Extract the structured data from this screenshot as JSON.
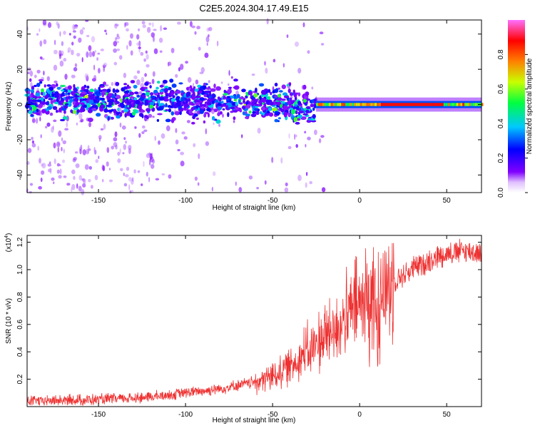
{
  "title": "C2E5.2024.304.17.49.E15",
  "chart_data": [
    {
      "type": "heatmap",
      "xlabel": "Height of straight line (km)",
      "ylabel": "Frequency (Hz)",
      "xlim": [
        -191,
        70
      ],
      "ylim": [
        -50,
        48
      ],
      "xticks": [
        -150,
        -100,
        -50,
        0,
        50
      ],
      "yticks": [
        -40,
        -20,
        0,
        20,
        40
      ],
      "colorbar": {
        "label": "Normalized spectral amplitude",
        "range": [
          0,
          1
        ],
        "ticks": [
          0.0,
          0.2,
          0.4,
          0.6,
          0.8
        ],
        "tick_labels": [
          "0.0",
          "0.2",
          "0.4",
          "0.6",
          "0.8"
        ],
        "colors": [
          "#ffffff",
          "#8000ff",
          "#0000ff",
          "#00c8ff",
          "#00ff60",
          "#c8ff00",
          "#ff8000",
          "#ff0000",
          "#ff40c0",
          "#ff80ff"
        ]
      },
      "bands": [
        {
          "x": [
            -191,
            -25
          ],
          "center_hz": 2,
          "halfwidth_hz": 7,
          "amplitude": 0.35
        },
        {
          "x": [
            -25,
            70
          ],
          "center_hz": 0,
          "halfwidth_hz": 2,
          "amplitude": 0.9
        }
      ]
    },
    {
      "type": "line",
      "xlabel": "Height of straight line (km)",
      "ylabel": "SNR (10 * v/v)",
      "multiplier_label": "(x10",
      "multiplier_exp": "4",
      "multiplier_close": ")",
      "xlim": [
        -191,
        70
      ],
      "ylim": [
        0,
        1.25
      ],
      "xticks": [
        -150,
        -100,
        -50,
        0,
        50
      ],
      "yticks": [
        0.2,
        0.4,
        0.6,
        0.8,
        1.0,
        1.2
      ],
      "ytick_labels": [
        "0.2",
        "0.4",
        "0.6",
        "0.8",
        "1.0",
        "1.2"
      ],
      "line_color": "#ee3030",
      "envelope": {
        "x": [
          -191,
          -150,
          -120,
          -100,
          -80,
          -60,
          -50,
          -40,
          -30,
          -20,
          -10,
          0,
          5,
          10,
          20,
          30,
          40,
          50,
          60,
          70
        ],
        "y": [
          0.04,
          0.05,
          0.07,
          0.1,
          0.13,
          0.18,
          0.22,
          0.3,
          0.4,
          0.5,
          0.62,
          0.75,
          0.8,
          0.78,
          0.92,
          1.0,
          1.07,
          1.12,
          1.14,
          1.12
        ]
      }
    }
  ]
}
